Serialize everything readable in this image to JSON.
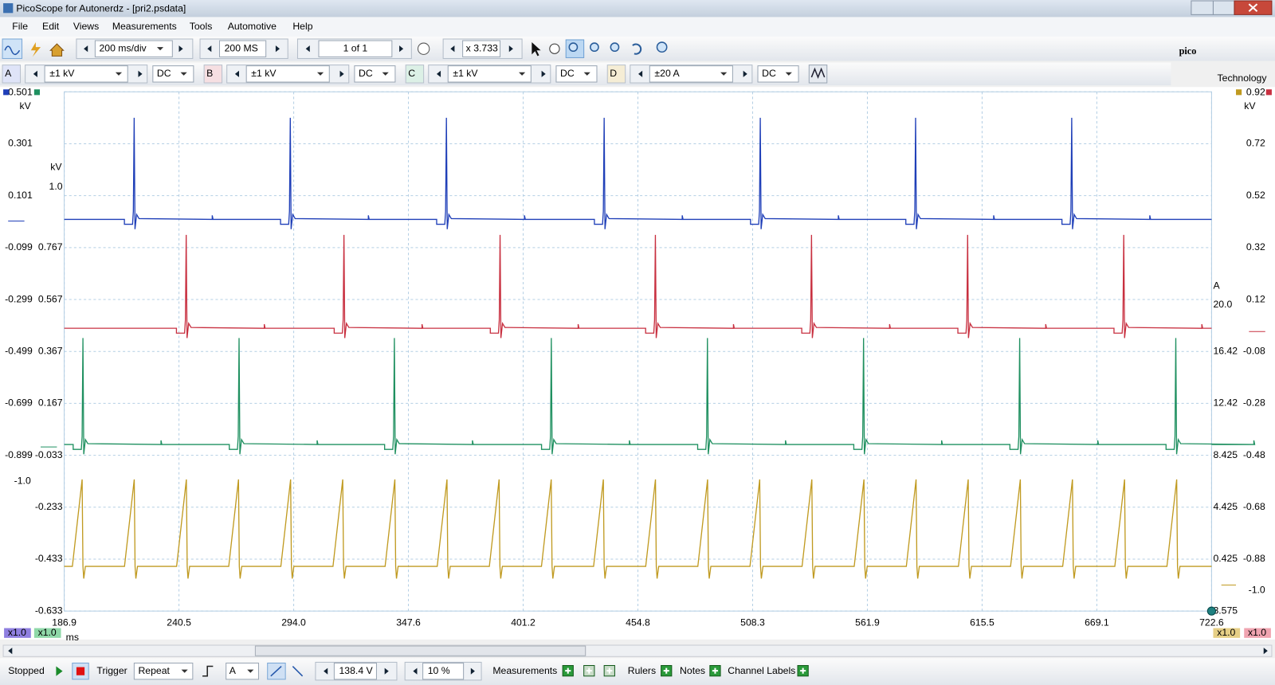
{
  "window": {
    "title": "PicoScope for Autonerdz - [pri2.psdata]"
  },
  "menu": [
    "File",
    "Edit",
    "Views",
    "Measurements",
    "Tools",
    "Automotive",
    "Help"
  ],
  "toolbar": {
    "timebase": "200 ms/div",
    "samples": "200 MS",
    "buffer": "1 of 1",
    "zoom": "x 3.733"
  },
  "channels": [
    {
      "letter": "A",
      "range": "±1 kV",
      "coupling": "DC"
    },
    {
      "letter": "B",
      "range": "±1 kV",
      "coupling": "DC"
    },
    {
      "letter": "C",
      "range": "±1 kV",
      "coupling": "DC"
    },
    {
      "letter": "D",
      "range": "±20 A",
      "coupling": "DC"
    }
  ],
  "logo": {
    "name": "pico",
    "sub": "Technology"
  },
  "axes": {
    "a": {
      "unit": "kV",
      "labels": [
        "0.501",
        "0.301",
        "0.101",
        "-0.099",
        "-0.299",
        "-0.499",
        "-0.699",
        "-0.899",
        "-1.0"
      ]
    },
    "c": {
      "unit": "kV",
      "labels": [
        "1.0",
        "0.767",
        "0.567",
        "0.367",
        "0.167",
        "-0.033",
        "-0.233",
        "-0.433",
        "-0.633"
      ]
    },
    "b": {
      "unit": "kV",
      "labels": [
        "0.92",
        "0.72",
        "0.52",
        "0.32",
        "0.12",
        "-0.08",
        "-0.28",
        "-0.48",
        "-0.68",
        "-0.88",
        "-1.0"
      ]
    },
    "d": {
      "unit": "A",
      "labels": [
        "20.0",
        "16.42",
        "12.42",
        "8.425",
        "4.425",
        "0.425",
        "3.575"
      ]
    }
  },
  "x_axis": {
    "labels": [
      "186.9",
      "240.5",
      "294.0",
      "347.6",
      "401.2",
      "454.8",
      "508.3",
      "561.9",
      "615.5",
      "669.1",
      "722.6"
    ],
    "unit": "ms"
  },
  "scale_badges": [
    "x1.0",
    "x1.0",
    "x1.0",
    "x1.0"
  ],
  "status": {
    "state": "Stopped",
    "trigger_label": "Trigger",
    "trigger_mode": "Repeat",
    "trigger_channel": "A",
    "threshold": "138.4 V",
    "pretrigger": "10 %",
    "measurements": "Measurements",
    "rulers": "Rulers",
    "notes": "Notes",
    "channel_labels": "Channel Labels"
  }
}
